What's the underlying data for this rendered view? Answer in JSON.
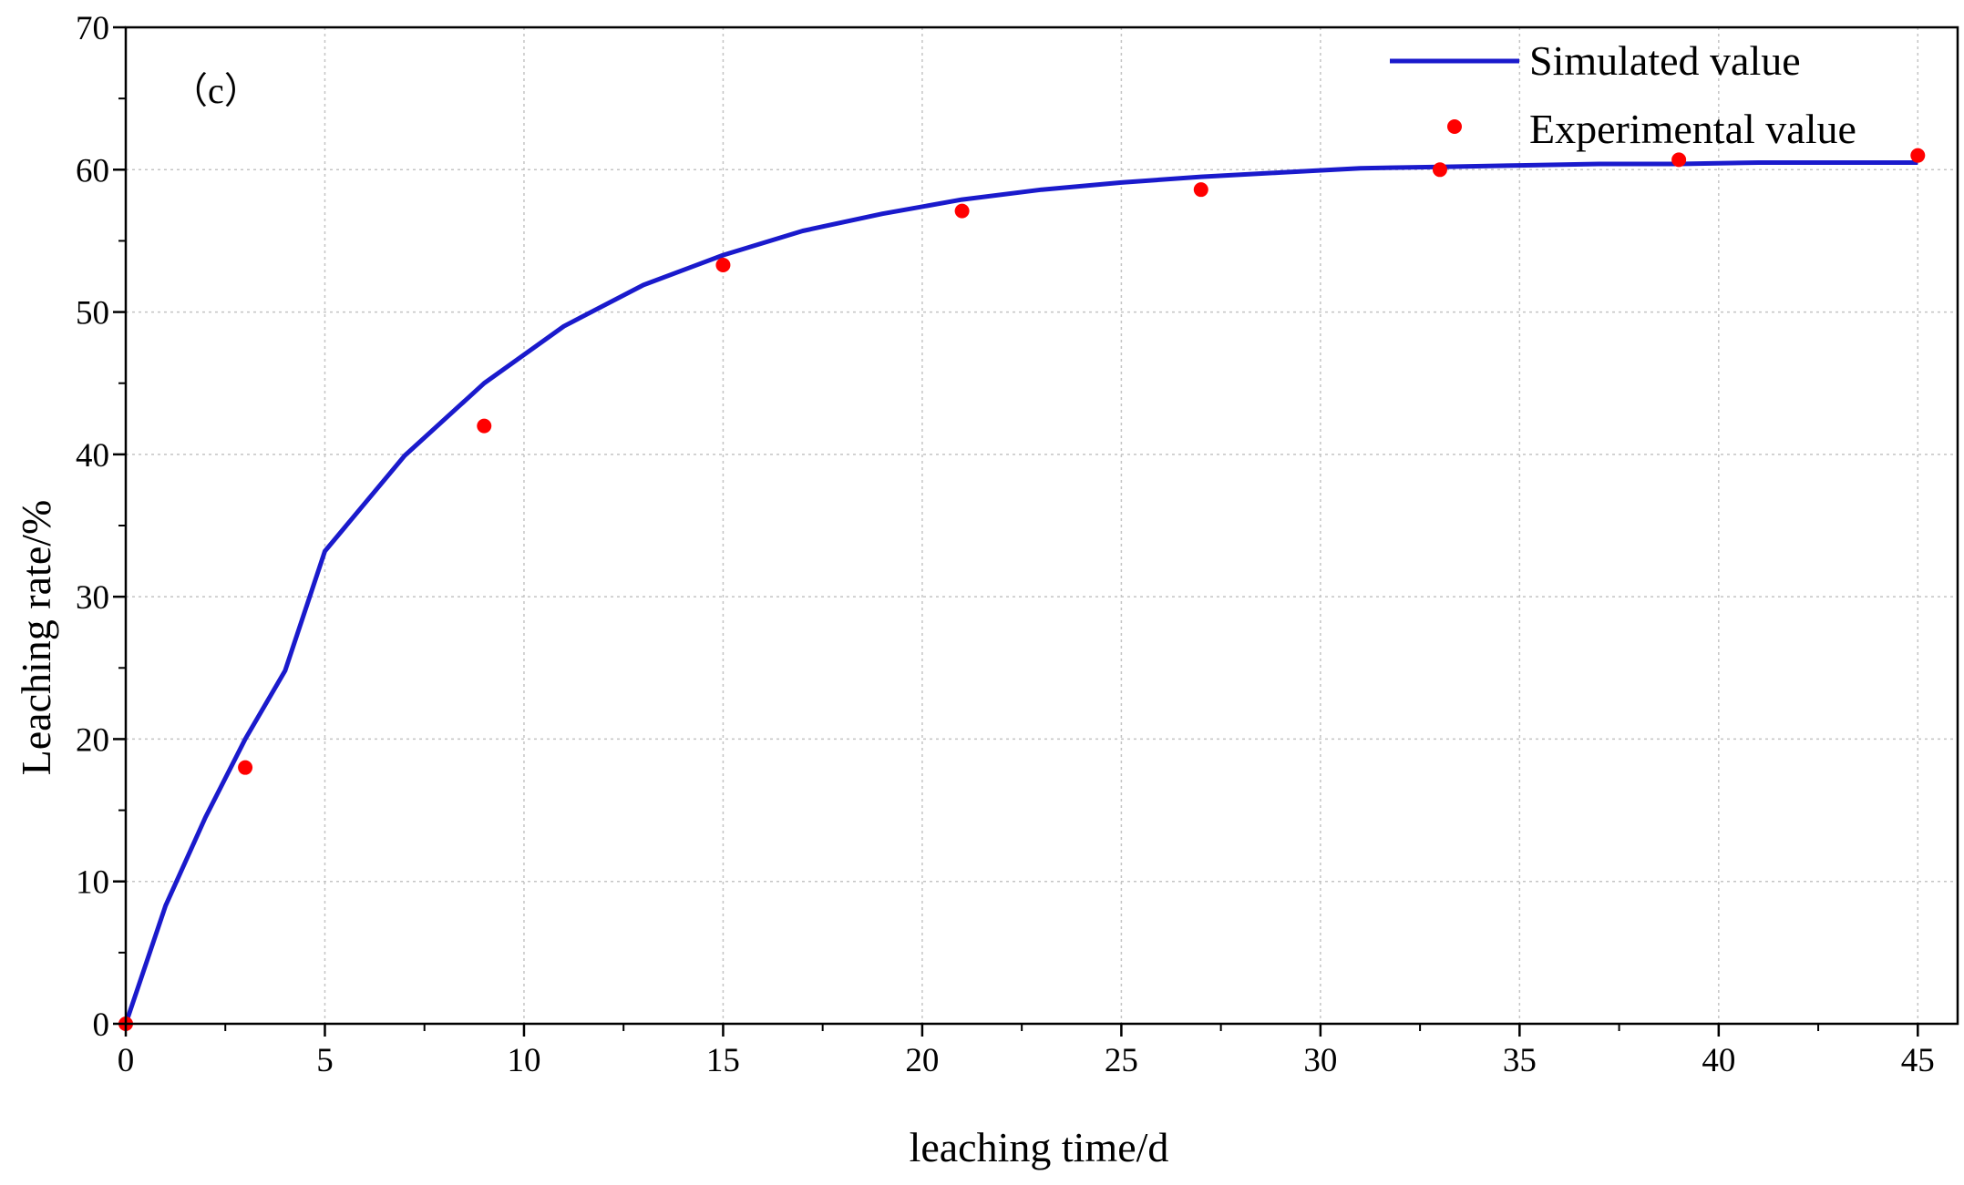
{
  "chart_data": {
    "type": "line",
    "panel_label": "（c）",
    "xlabel": "leaching time/d",
    "ylabel": "Leaching rate/%",
    "xlim": [
      0,
      46
    ],
    "ylim": [
      0,
      70
    ],
    "x_ticks": [
      0,
      5,
      10,
      15,
      20,
      25,
      30,
      35,
      40,
      45
    ],
    "y_ticks": [
      0,
      10,
      20,
      30,
      40,
      50,
      60,
      70
    ],
    "grid": true,
    "legend_position": "top-right",
    "series": [
      {
        "name": "Simulated value",
        "kind": "line",
        "color": "#1a1acc",
        "x": [
          0,
          1,
          2,
          3,
          4,
          5,
          7,
          9,
          11,
          13,
          15,
          17,
          19,
          21,
          23,
          25,
          27,
          29,
          31,
          33,
          35,
          37,
          39,
          41,
          43,
          45
        ],
        "y": [
          0,
          8.3,
          14.5,
          20.0,
          24.8,
          33.2,
          39.9,
          45.0,
          49.0,
          51.9,
          54.0,
          55.7,
          56.9,
          57.9,
          58.6,
          59.1,
          59.5,
          59.8,
          60.1,
          60.2,
          60.3,
          60.4,
          60.4,
          60.5,
          60.5,
          60.5
        ]
      },
      {
        "name": "Experimental value",
        "kind": "scatter",
        "color": "#ff0000",
        "x": [
          0,
          3,
          9,
          15,
          21,
          27,
          33,
          39,
          45
        ],
        "y": [
          0,
          18.0,
          42.0,
          53.3,
          57.1,
          58.6,
          60.0,
          60.7,
          61.0
        ]
      }
    ]
  }
}
